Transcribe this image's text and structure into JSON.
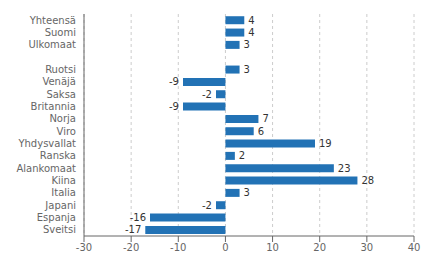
{
  "chart_data": {
    "type": "bar",
    "orientation": "horizontal",
    "categories": [
      "Yhteensä",
      "Suomi",
      "Ulkomaat",
      null,
      "Ruotsi",
      "Venäjä",
      "Saksa",
      "Britannia",
      "Norja",
      "Viro",
      "Yhdysvallat",
      "Ranska",
      "Alankomaat",
      "Kiina",
      "Italia",
      "Japani",
      "Espanja",
      "Sveitsi"
    ],
    "values": [
      4,
      4,
      3,
      null,
      3,
      -9,
      -2,
      -9,
      7,
      6,
      19,
      2,
      23,
      28,
      3,
      -2,
      -16,
      -17
    ],
    "color": "#2272b5",
    "xlim": [
      -30,
      40
    ],
    "xticks": [
      -30,
      -20,
      -10,
      0,
      10,
      20,
      30,
      40
    ],
    "grid": true,
    "data_labels": true
  }
}
